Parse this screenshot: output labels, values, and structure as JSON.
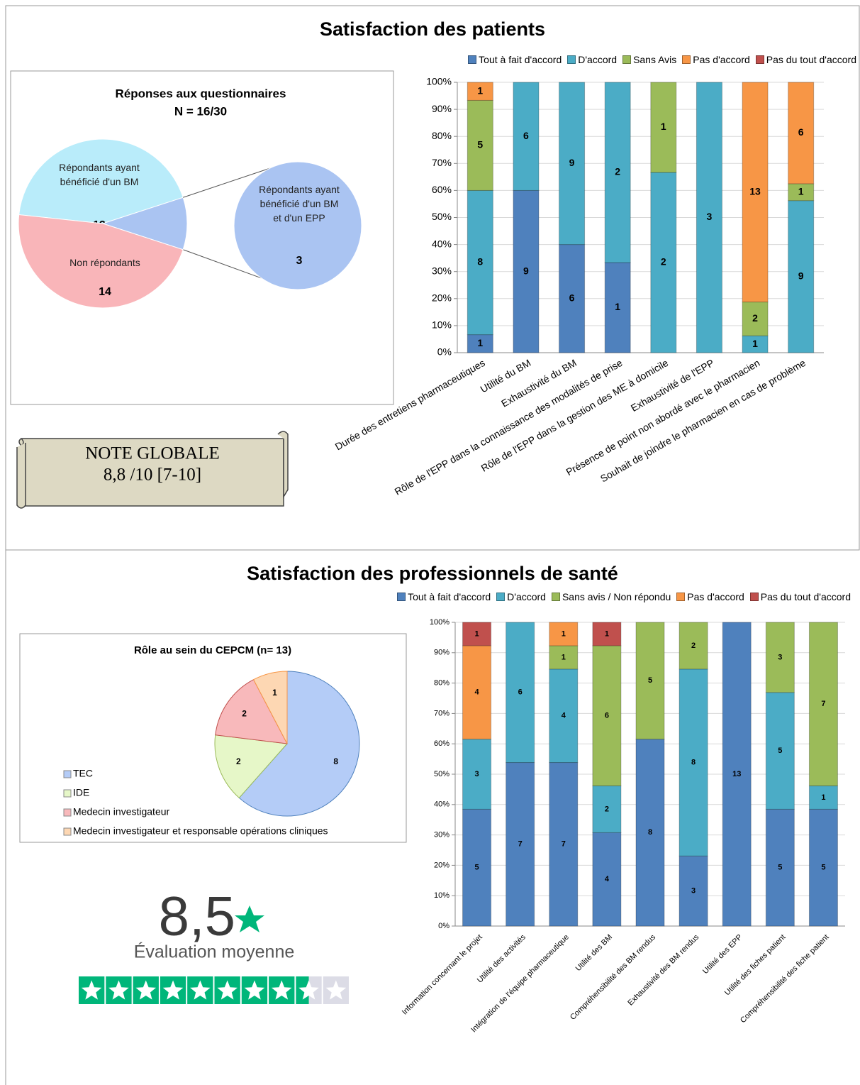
{
  "patients": {
    "title": "Satisfaction des patients",
    "note_title": "NOTE GLOBALE",
    "note_value": "8,8 /10 [7-10]"
  },
  "professionals": {
    "title": "Satisfaction des professionnels de santé",
    "rating": {
      "value": 8.5,
      "label": "8,5"
    },
    "rating_label": "Évaluation moyenne",
    "rating_max": 10,
    "star_color": "#00b67a"
  },
  "chart_data": [
    {
      "type": "pie_of_pie",
      "title": "Réponses aux questionnaires",
      "subtitle": "N = 16/30",
      "categories": [
        "Répondants ayant bénéficié d'un BM",
        "Répondants ayant bénéficié d'un BM et d'un EPP",
        "Non répondants"
      ],
      "values": [
        13,
        3,
        14
      ],
      "colors": [
        "#b9ecfa",
        "#aac4f2",
        "#f9b5b9"
      ],
      "secondary": [
        1
      ]
    },
    {
      "type": "bar",
      "stacked": "percent",
      "categories": [
        "Durée des entretiens pharmaceutiques",
        "Utilité du BM",
        "Exhaustivité du BM",
        "Rôle de l'EPP dans la connaissance des modalités de prise",
        "Rôle de l'EPP dans la gestion des ME à domicile",
        "Exhaustivité de l'EPP",
        "Présence de point non abordé avec le pharmacien",
        "Souhait de joindre le pharmacien en cas de problème"
      ],
      "series": [
        {
          "name": "Tout à fait d'accord",
          "color": "#4f81bd",
          "values": [
            1,
            9,
            6,
            1,
            0,
            0,
            0,
            0
          ]
        },
        {
          "name": "D'accord",
          "color": "#4bacc6",
          "values": [
            8,
            6,
            9,
            2,
            2,
            3,
            1,
            9
          ]
        },
        {
          "name": "Sans Avis",
          "color": "#9bbb59",
          "values": [
            5,
            0,
            0,
            0,
            1,
            0,
            2,
            1
          ]
        },
        {
          "name": "Pas d'accord",
          "color": "#f79646",
          "values": [
            1,
            0,
            0,
            0,
            0,
            0,
            13,
            6
          ]
        },
        {
          "name": "Pas du tout d'accord",
          "color": "#c0504d",
          "values": [
            0,
            0,
            0,
            0,
            0,
            0,
            0,
            0
          ]
        }
      ],
      "ylim": [
        0,
        100
      ],
      "yticks": [
        {
          "value": 0,
          "label": "0%"
        },
        {
          "value": 10,
          "label": "10%"
        },
        {
          "value": 20,
          "label": "20%"
        },
        {
          "value": 30,
          "label": "30%"
        },
        {
          "value": 40,
          "label": "40%"
        },
        {
          "value": 50,
          "label": "50%"
        },
        {
          "value": 60,
          "label": "60%"
        },
        {
          "value": 70,
          "label": "70%"
        },
        {
          "value": 80,
          "label": "80%"
        },
        {
          "value": 90,
          "label": "90%"
        },
        {
          "value": 100,
          "label": "100%"
        }
      ],
      "grid": true,
      "legend": "top-right"
    },
    {
      "type": "pie",
      "title": "Rôle au sein du CEPCM (n= 13)",
      "categories": [
        "TEC",
        "IDE",
        "Medecin investigateur",
        "Medecin investigateur et responsable opérations cliniques"
      ],
      "values": [
        8,
        2,
        2,
        1
      ],
      "colors": [
        "#b4ccf7",
        "#e6f7c8",
        "#f8b9bb",
        "#fdd7b3"
      ],
      "legend": "left"
    },
    {
      "type": "bar",
      "stacked": "percent",
      "categories": [
        "Information concernant le projet",
        "Utilité des activités",
        "Intégration de l'équipe pharmaceutique",
        "Utilité des BM",
        "Compréhensibilité des BM rendus",
        "Exhaustivité des BM rendus",
        "Utilité des EPP",
        "Utilité des fiches patient",
        "Compréhensibilité des fiche patient"
      ],
      "series": [
        {
          "name": "Tout à fait d'accord",
          "color": "#4f81bd",
          "values": [
            5,
            7,
            7,
            4,
            8,
            3,
            13,
            5,
            5
          ]
        },
        {
          "name": "D'accord",
          "color": "#4bacc6",
          "values": [
            3,
            6,
            4,
            2,
            0,
            8,
            0,
            5,
            1
          ]
        },
        {
          "name": "Sans avis / Non répondu",
          "color": "#9bbb59",
          "values": [
            0,
            0,
            1,
            6,
            5,
            2,
            0,
            3,
            7
          ]
        },
        {
          "name": "Pas d'accord",
          "color": "#f79646",
          "values": [
            4,
            0,
            1,
            0,
            0,
            0,
            0,
            0,
            0
          ]
        },
        {
          "name": "Pas du tout d'accord",
          "color": "#c0504d",
          "values": [
            1,
            0,
            0,
            1,
            0,
            0,
            0,
            0,
            0
          ]
        }
      ],
      "ylim": [
        0,
        100
      ],
      "yticks": [
        {
          "value": 0,
          "label": "0%"
        },
        {
          "value": 10,
          "label": "10%"
        },
        {
          "value": 20,
          "label": "20%"
        },
        {
          "value": 30,
          "label": "30%"
        },
        {
          "value": 40,
          "label": "40%"
        },
        {
          "value": 50,
          "label": "50%"
        },
        {
          "value": 60,
          "label": "60%"
        },
        {
          "value": 70,
          "label": "70%"
        },
        {
          "value": 80,
          "label": "80%"
        },
        {
          "value": 90,
          "label": "90%"
        },
        {
          "value": 100,
          "label": "100%"
        }
      ],
      "grid": true,
      "legend": "top-right"
    }
  ]
}
